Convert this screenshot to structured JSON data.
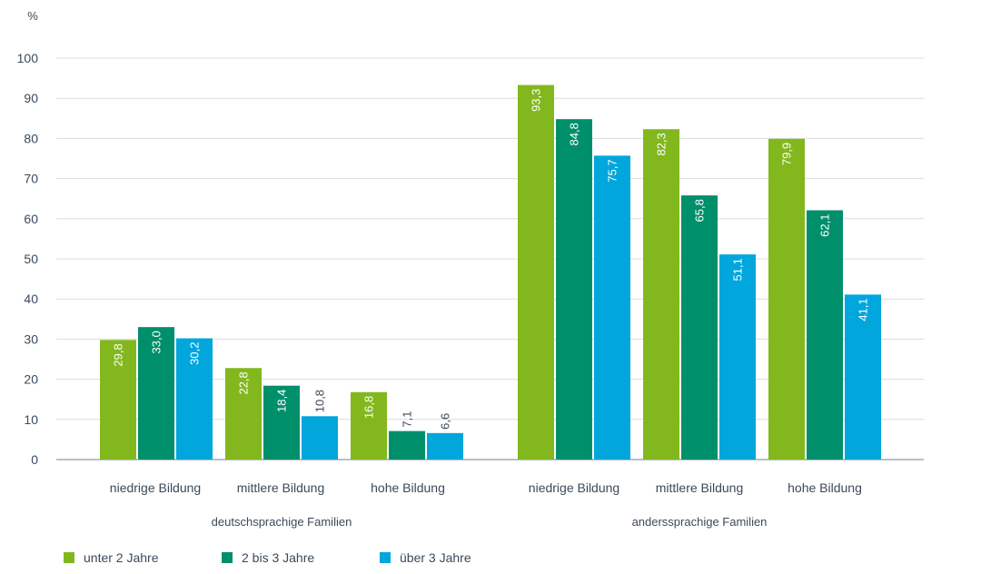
{
  "chart_data": {
    "type": "bar",
    "ylabel": "%",
    "ylim": [
      0,
      100
    ],
    "yticks": [
      0,
      10,
      20,
      30,
      40,
      50,
      60,
      70,
      80,
      90,
      100
    ],
    "grid": true,
    "legend_position": "bottom-left",
    "groups": [
      {
        "label": "deutschsprachige Familien",
        "categories": [
          "niedrige Bildung",
          "mittlere Bildung",
          "hohe Bildung"
        ]
      },
      {
        "label": "anderssprachige Familien",
        "categories": [
          "niedrige Bildung",
          "mittlere Bildung",
          "hohe Bildung"
        ]
      }
    ],
    "series": [
      {
        "name": "unter 2 Jahre",
        "color": "#82b81e",
        "values": [
          29.8,
          22.8,
          16.8,
          93.3,
          82.3,
          79.9
        ],
        "labels": [
          "29,8",
          "22,8",
          "16,8",
          "93,3",
          "82,3",
          "79,9"
        ]
      },
      {
        "name": "2 bis 3 Jahre",
        "color": "#008f6b",
        "values": [
          33.0,
          18.4,
          7.1,
          84.8,
          65.8,
          62.1
        ],
        "labels": [
          "33,0",
          "18,4",
          "7,1",
          "84,8",
          "65,8",
          "62,1"
        ]
      },
      {
        "name": "über 3 Jahre",
        "color": "#00a6dc",
        "values": [
          30.2,
          10.8,
          6.6,
          75.7,
          51.1,
          41.1
        ],
        "labels": [
          "30,2",
          "10,8",
          "6,6",
          "75,7",
          "51,1",
          "41,1"
        ]
      }
    ]
  }
}
